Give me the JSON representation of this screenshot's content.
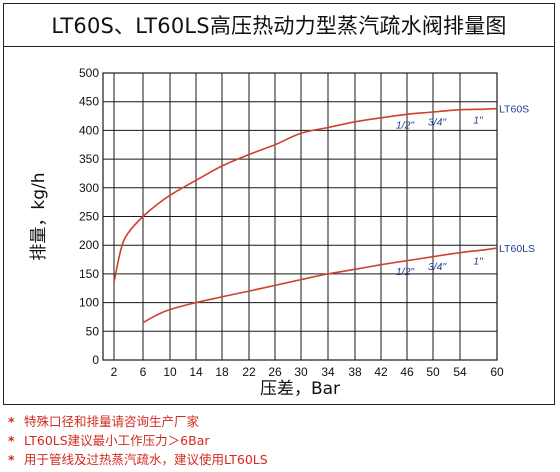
{
  "title": "LT60S、LT60LS高压热动力型蒸汽疏水阀排量图",
  "chart_data": {
    "type": "line",
    "title": "LT60S、LT60LS高压热动力型蒸汽疏水阀排量图",
    "xlabel": "压差，Bar",
    "ylabel": "排量，kg/h",
    "xlim": [
      2,
      60
    ],
    "ylim": [
      0,
      500
    ],
    "x_ticks": [
      "2",
      "6",
      "10",
      "14",
      "18",
      "22",
      "26",
      "30",
      "34",
      "38",
      "42",
      "46",
      "50",
      "54",
      "60"
    ],
    "y_ticks": [
      "0",
      "50",
      "100",
      "150",
      "200",
      "250",
      "300",
      "350",
      "400",
      "450",
      "500"
    ],
    "grid": true,
    "series": [
      {
        "name": "LT60S",
        "x": [
          2,
          3,
          4,
          6,
          8,
          10,
          14,
          18,
          22,
          26,
          30,
          34,
          38,
          42,
          46,
          50,
          54,
          58,
          60
        ],
        "y": [
          135,
          195,
          222,
          250,
          270,
          287,
          313,
          338,
          358,
          375,
          395,
          405,
          415,
          422,
          428,
          432,
          436,
          437,
          438
        ]
      },
      {
        "name": "LT60LS",
        "x": [
          6,
          8,
          10,
          14,
          18,
          22,
          26,
          30,
          34,
          38,
          42,
          46,
          50,
          54,
          58,
          60
        ],
        "y": [
          65,
          78,
          88,
          100,
          110,
          120,
          130,
          140,
          150,
          158,
          166,
          173,
          180,
          187,
          192,
          195
        ]
      }
    ],
    "annotations": [
      {
        "series": "LT60S",
        "labels": [
          "1/2\"",
          "3/4\"",
          "1\""
        ]
      },
      {
        "series": "LT60LS",
        "labels": [
          "1/2\"",
          "3/4\"",
          "1\""
        ]
      }
    ],
    "colors": {
      "line": "#d0402e",
      "annotation": "#1f3f8f",
      "grid": "#1a1a1a"
    }
  },
  "notes": [
    {
      "star": "*",
      "text": "特殊口径和排量请咨询生产厂家"
    },
    {
      "star": "*",
      "text": "LT60LS建议最小工作压力＞6Bar"
    },
    {
      "star": "*",
      "text": "用于管线及过热蒸汽疏水，建议使用LT60LS"
    }
  ]
}
